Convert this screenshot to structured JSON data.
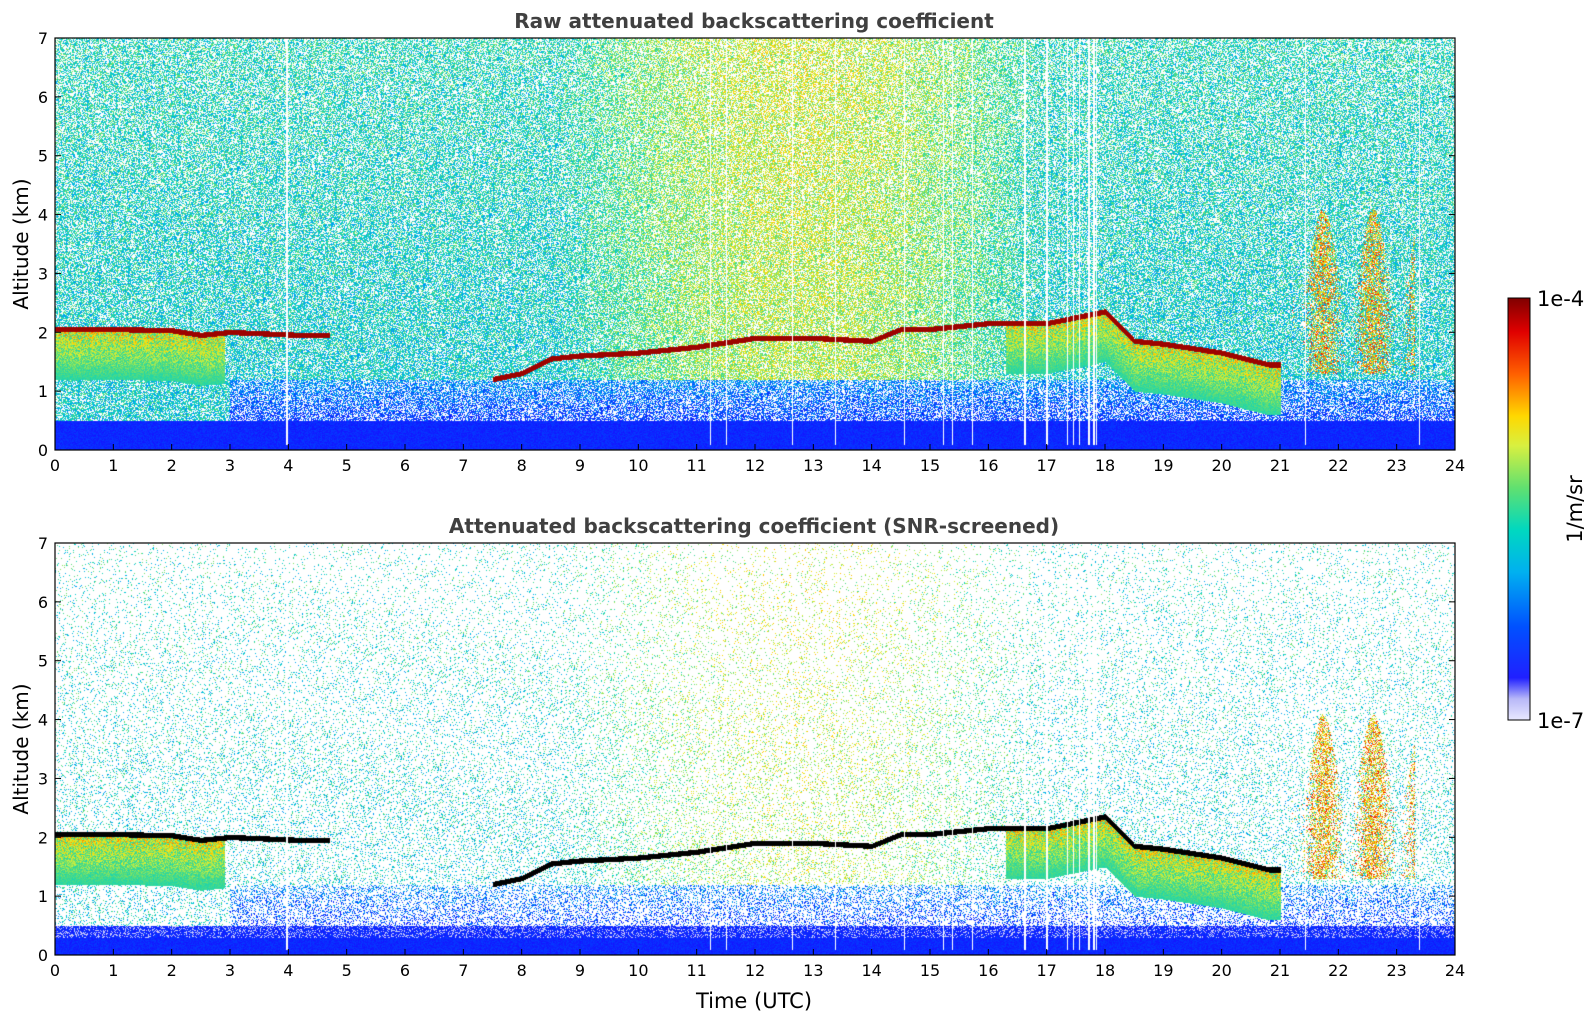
{
  "chart_data": [
    {
      "type": "heatmap",
      "title": "Raw attenuated backscattering coefficient",
      "xlabel": "",
      "ylabel": "Altitude (km)",
      "xlim": [
        0,
        24
      ],
      "ylim": [
        0,
        7
      ],
      "xticks": [
        "0",
        "1",
        "2",
        "3",
        "4",
        "5",
        "6",
        "7",
        "8",
        "9",
        "10",
        "11",
        "12",
        "13",
        "14",
        "15",
        "16",
        "17",
        "18",
        "19",
        "20",
        "21",
        "22",
        "23",
        "24"
      ],
      "yticks": [
        "0",
        "1",
        "2",
        "3",
        "4",
        "5",
        "6",
        "7"
      ],
      "screened": false,
      "cloud_layer_top_km": [
        [
          0,
          2.1
        ],
        [
          1,
          2.1
        ],
        [
          2,
          2.08
        ],
        [
          2.5,
          2.0
        ],
        [
          3,
          2.05
        ],
        [
          4.2,
          2.0
        ],
        [
          4.7,
          2.0
        ],
        [
          7.5,
          1.25
        ],
        [
          8.0,
          1.35
        ],
        [
          8.5,
          1.6
        ],
        [
          9.0,
          1.65
        ],
        [
          10.0,
          1.7
        ],
        [
          11.0,
          1.8
        ],
        [
          12.0,
          1.95
        ],
        [
          13.0,
          1.95
        ],
        [
          14.0,
          1.9
        ],
        [
          14.5,
          2.1
        ],
        [
          15.0,
          2.1
        ],
        [
          16.0,
          2.2
        ],
        [
          17.0,
          2.2
        ],
        [
          17.5,
          2.3
        ],
        [
          18.0,
          2.4
        ],
        [
          18.5,
          1.9
        ],
        [
          19.0,
          1.85
        ],
        [
          20.0,
          1.7
        ],
        [
          20.8,
          1.5
        ],
        [
          21.0,
          1.5
        ]
      ],
      "colorbar": {
        "label": "1/m/sr",
        "min_label": "1e-7",
        "max_label": "1e-4",
        "scale": "log"
      }
    },
    {
      "type": "heatmap",
      "title": "Attenuated backscattering coefficient (SNR-screened)",
      "xlabel": "Time (UTC)",
      "ylabel": "Altitude (km)",
      "xlim": [
        0,
        24
      ],
      "ylim": [
        0,
        7
      ],
      "xticks": [
        "0",
        "1",
        "2",
        "3",
        "4",
        "5",
        "6",
        "7",
        "8",
        "9",
        "10",
        "11",
        "12",
        "13",
        "14",
        "15",
        "16",
        "17",
        "18",
        "19",
        "20",
        "21",
        "22",
        "23",
        "24"
      ],
      "yticks": [
        "0",
        "1",
        "2",
        "3",
        "4",
        "5",
        "6",
        "7"
      ],
      "screened": true,
      "colorbar": {
        "label": "1/m/sr",
        "min_label": "1e-7",
        "max_label": "1e-4",
        "scale": "log"
      }
    }
  ]
}
